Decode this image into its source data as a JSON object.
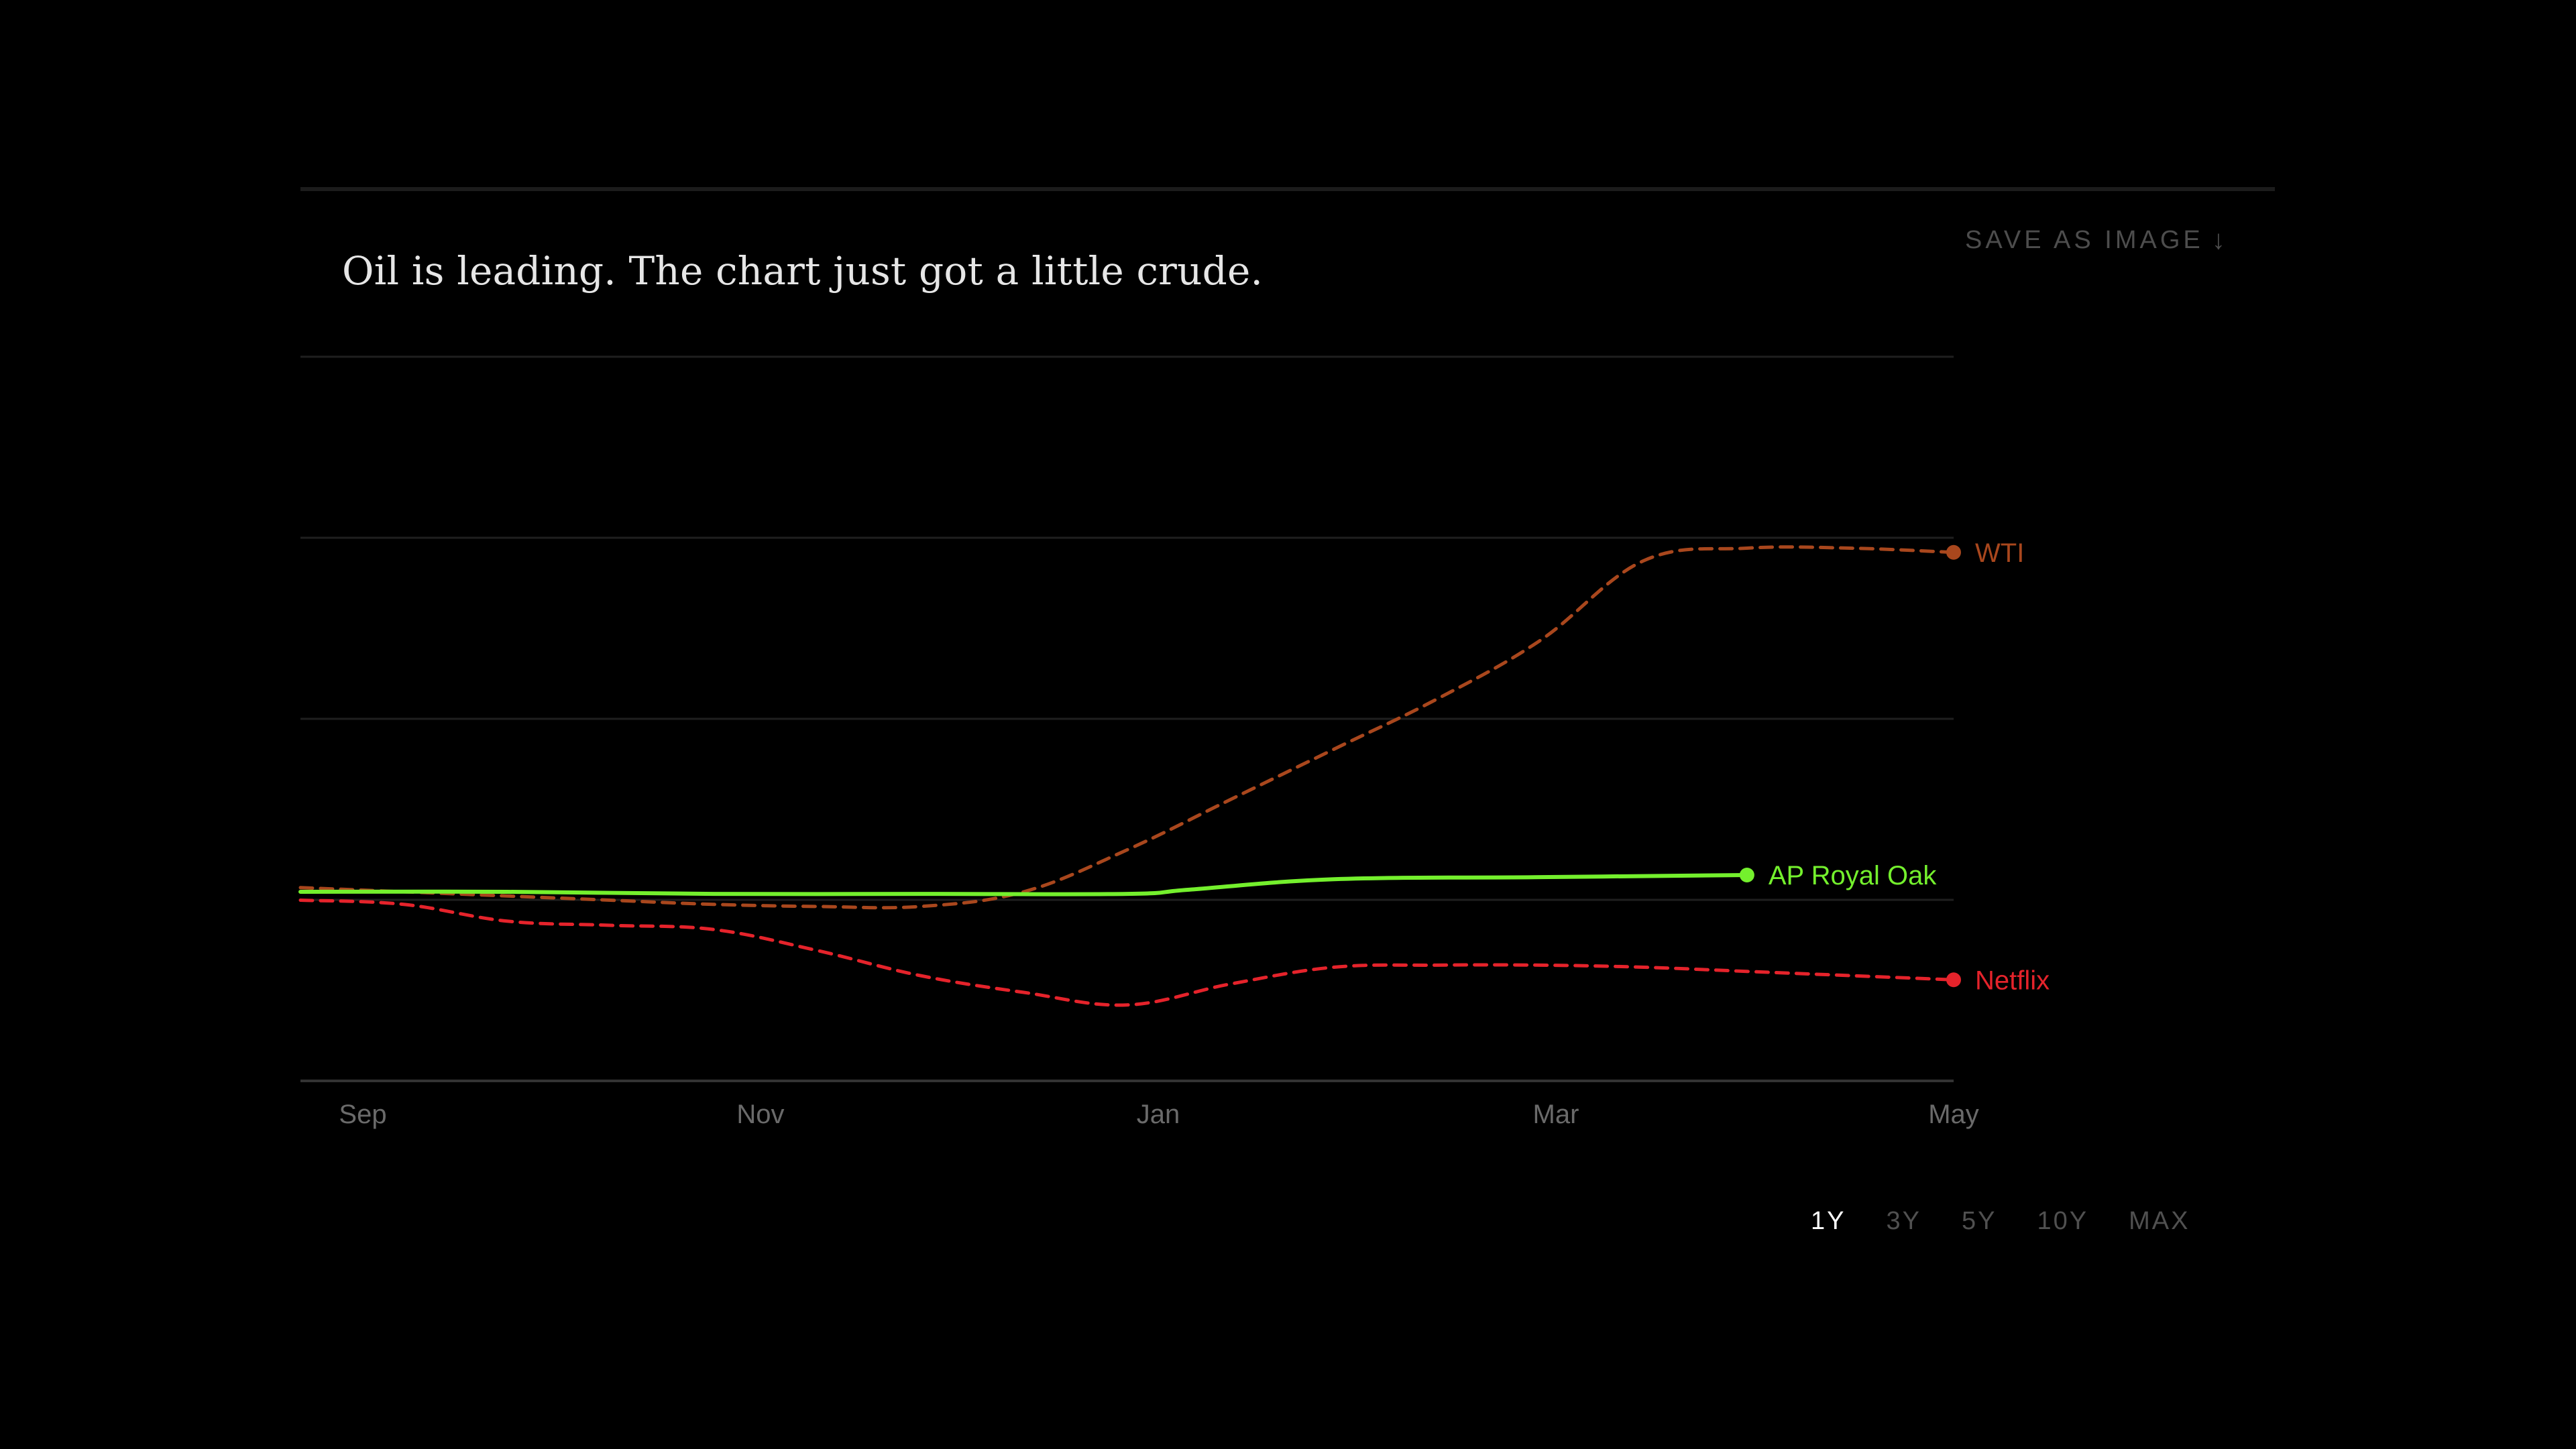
{
  "title": "Oil is leading. The chart just got a little crude.",
  "save_button": {
    "label": "SAVE AS IMAGE",
    "icon": "download-arrow-icon"
  },
  "range_buttons": [
    {
      "label": "1Y",
      "active": true
    },
    {
      "label": "3Y",
      "active": false
    },
    {
      "label": "5Y",
      "active": false
    },
    {
      "label": "10Y",
      "active": false
    },
    {
      "label": "MAX",
      "active": false
    }
  ],
  "chart_data": {
    "type": "line",
    "title": "Oil is leading. The chart just got a little crude.",
    "x_ticks": [
      "Sep",
      "Nov",
      "Jan",
      "Mar",
      "May"
    ],
    "grid": true,
    "series": [
      {
        "name": "WTI",
        "color": "#a9471d",
        "style": "dashed",
        "x": [
          0,
          0.5,
          1,
          1.5,
          2,
          2.5,
          3,
          3.5,
          4,
          4.5,
          5,
          5.5,
          6,
          6.5,
          7,
          7.5,
          8
        ],
        "y": [
          1.01,
          1.0,
          0.99,
          0.98,
          0.97,
          0.965,
          0.965,
          1.0,
          1.1,
          1.22,
          1.34,
          1.46,
          1.6,
          1.79,
          1.82,
          1.82,
          1.81
        ],
        "end_label": "WTI"
      },
      {
        "name": "AP Royal Oak",
        "color": "#74f02d",
        "style": "solid",
        "x": [
          0,
          1,
          2,
          3,
          4,
          4.3,
          5,
          6,
          7
        ],
        "y": [
          1.0,
          1.0,
          0.995,
          0.995,
          0.995,
          1.005,
          1.03,
          1.035,
          1.04
        ],
        "end_label": "AP Royal Oak"
      },
      {
        "name": "Netflix",
        "color": "#e5232b",
        "style": "dashed",
        "x": [
          0,
          0.5,
          1,
          1.5,
          2,
          2.5,
          3,
          3.5,
          4,
          4.5,
          5,
          5.5,
          6,
          6.5,
          7,
          7.5,
          8
        ],
        "y": [
          0.98,
          0.97,
          0.93,
          0.92,
          0.91,
          0.86,
          0.8,
          0.76,
          0.73,
          0.78,
          0.82,
          0.825,
          0.825,
          0.82,
          0.81,
          0.8,
          0.79
        ],
        "end_label": "Netflix"
      }
    ],
    "xlim": [
      0,
      8
    ],
    "ylim": [
      0.7,
      2.3
    ]
  }
}
